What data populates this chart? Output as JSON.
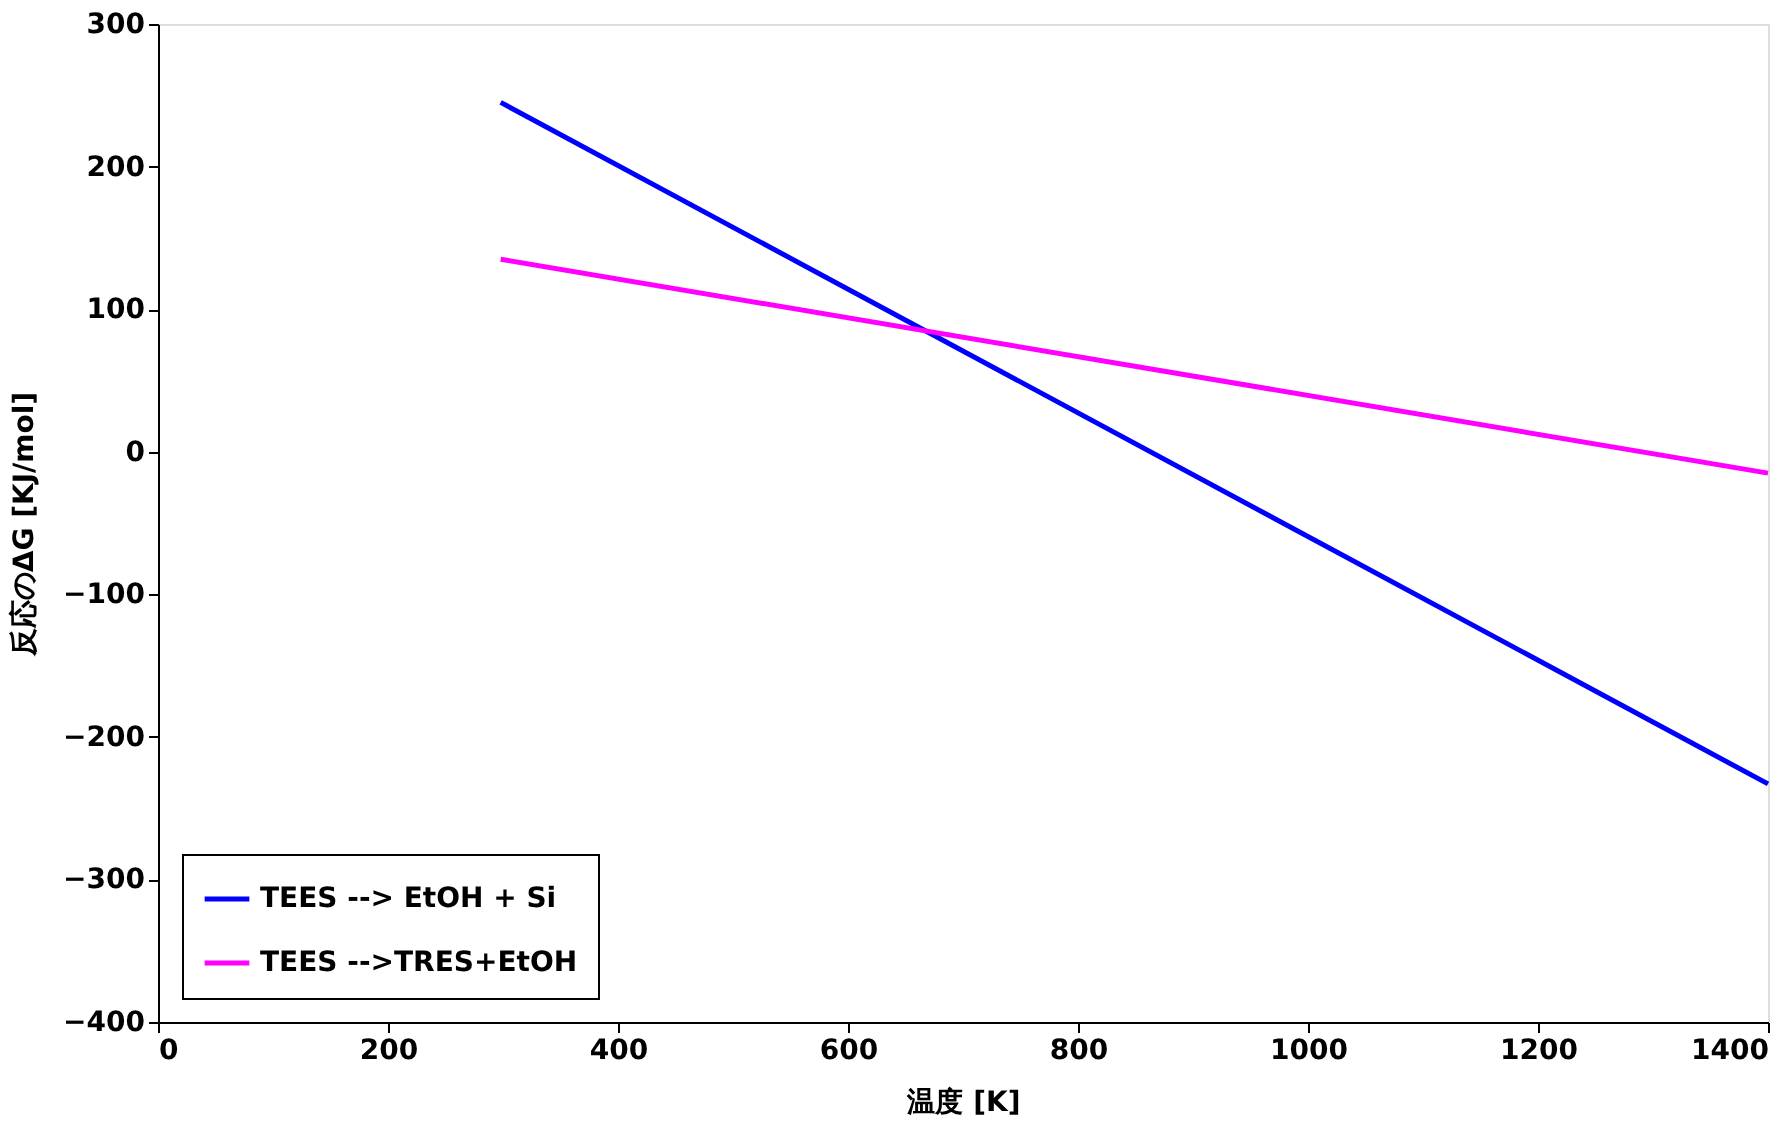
{
  "chart_data": {
    "type": "line",
    "xlabel": "温度 [K]",
    "ylabel": "反応のΔG [KJ/mol]",
    "x": [
      298,
      1400
    ],
    "series": [
      {
        "name": "TEES --> EtOH + Si",
        "color": "#0000ff",
        "values": [
          245,
          -233
        ]
      },
      {
        "name": "TEES -->TRES+EtOH",
        "color": "#ff00ff",
        "values": [
          135,
          -15
        ]
      }
    ],
    "xlim": [
      0,
      1400
    ],
    "xticks": [
      0,
      200,
      400,
      600,
      800,
      1000,
      1200,
      1400
    ],
    "ylim": [
      -400,
      300
    ],
    "yticks": [
      -400,
      -300,
      -200,
      -100,
      0,
      100,
      200,
      300
    ],
    "grid": false,
    "legend": "bottom left",
    "marker": "none",
    "line_style": "solid"
  }
}
